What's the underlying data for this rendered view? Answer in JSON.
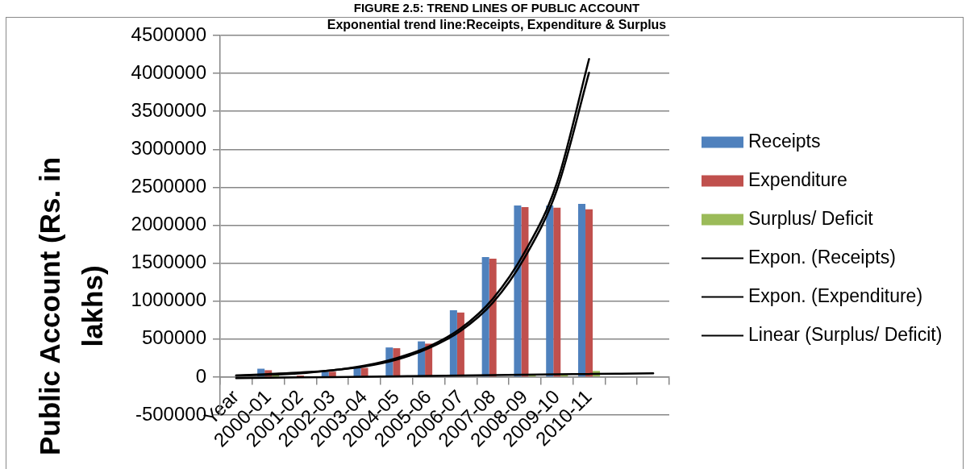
{
  "chart_data": {
    "type": "bar",
    "title": "FIGURE 2.5: TREND LINES OF PUBLIC ACCOUNT",
    "subtitle": "Exponential trend line:Receipts, Expenditure & Surplus",
    "ylabel": "Public Account (Rs. in lakhs)",
    "categories": [
      "Year",
      "2000-01",
      "2001-02",
      "2002-03",
      "2003-04",
      "2004-05",
      "2005-06",
      "2006-07",
      "2007-08",
      "2008-09",
      "2009-10",
      "2010-11",
      null,
      null
    ],
    "series": [
      {
        "name": "Receipts",
        "color": "#4f81bd",
        "values": [
          null,
          110000,
          null,
          70000,
          130000,
          390000,
          470000,
          880000,
          1580000,
          2260000,
          2260000,
          2280000,
          null,
          null
        ]
      },
      {
        "name": "Expenditure",
        "color": "#c0504d",
        "values": [
          null,
          90000,
          20000,
          70000,
          120000,
          380000,
          440000,
          850000,
          1560000,
          2240000,
          2230000,
          2210000,
          null,
          null
        ]
      },
      {
        "name": "Surplus/ Deficit",
        "color": "#9bbb59",
        "values": [
          null,
          20000,
          null,
          null,
          null,
          null,
          null,
          null,
          null,
          20000,
          30000,
          80000,
          null,
          null
        ]
      },
      {
        "name": "Expon. (Receipts)",
        "type": "line",
        "color": "#000000",
        "values": [
          20000,
          40000,
          60000,
          90000,
          150000,
          250000,
          400000,
          640000,
          1030000,
          1650000,
          2560000,
          4190000,
          null,
          null
        ]
      },
      {
        "name": "Expon. (Expenditure)",
        "type": "line",
        "color": "#000000",
        "values": [
          20000,
          30000,
          50000,
          90000,
          140000,
          230000,
          380000,
          610000,
          980000,
          1580000,
          2470000,
          4010000,
          null,
          null
        ]
      },
      {
        "name": "Linear (Surplus/ Deficit)",
        "type": "line",
        "color": "#000000",
        "values": [
          -15000,
          -10000,
          -5000,
          0,
          5000,
          10000,
          15000,
          20000,
          25000,
          30000,
          35000,
          40000,
          45000,
          50000
        ]
      }
    ],
    "ylim": [
      -500000,
      4500000
    ],
    "yticks": [
      -500000,
      0,
      500000,
      1000000,
      1500000,
      2000000,
      2500000,
      3000000,
      3500000,
      4000000,
      4500000
    ],
    "grid": "y",
    "legend": "right",
    "marker": "none"
  }
}
